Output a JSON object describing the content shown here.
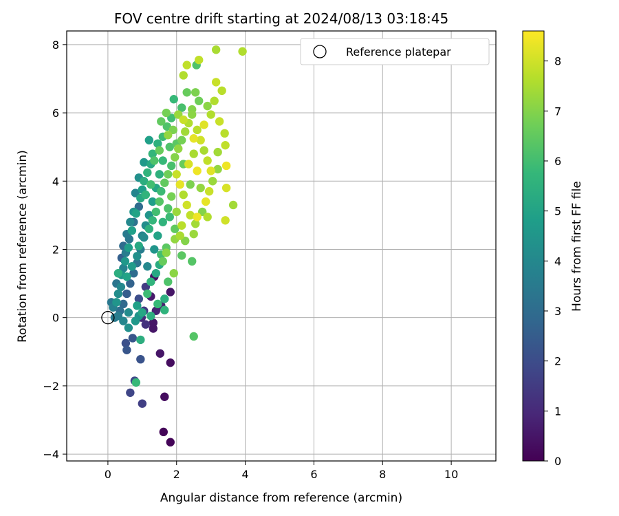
{
  "chart_data": {
    "type": "scatter",
    "title": "FOV centre drift starting at 2024/08/13 03:18:45",
    "xlabel": "Angular distance from reference (arcmin)",
    "ylabel": "Rotation from reference (arcmin)",
    "xlim": [
      -1.2,
      11.3
    ],
    "ylim": [
      -4.2,
      8.4
    ],
    "x_ticks": [
      0,
      2,
      4,
      6,
      8,
      10
    ],
    "y_ticks": [
      -4,
      -2,
      0,
      2,
      4,
      6,
      8
    ],
    "x_tick_labels": [
      "0",
      "2",
      "4",
      "6",
      "8",
      "10"
    ],
    "y_tick_labels": [
      "−4",
      "−2",
      "0",
      "2",
      "4",
      "6",
      "8"
    ],
    "grid": true,
    "legend": {
      "placement": "top-right",
      "label": "Reference platepar"
    },
    "reference_point": {
      "x": 0,
      "y": 0
    },
    "colorbar": {
      "label": "Hours from first FF file",
      "range": [
        0,
        8.6
      ],
      "ticks": [
        0,
        1,
        2,
        3,
        4,
        5,
        6,
        7,
        8
      ],
      "tick_labels": [
        "0",
        "1",
        "2",
        "3",
        "4",
        "5",
        "6",
        "7",
        "8"
      ],
      "colormap": "viridis"
    },
    "points": [
      {
        "x": 1.82,
        "y": -3.65,
        "h": 0.1
      },
      {
        "x": 1.62,
        "y": -3.35,
        "h": 0.1
      },
      {
        "x": 1.65,
        "y": -2.32,
        "h": 0.3
      },
      {
        "x": 1.82,
        "y": -1.32,
        "h": 0.3
      },
      {
        "x": 1.52,
        "y": -1.05,
        "h": 0.5
      },
      {
        "x": 1.32,
        "y": -0.32,
        "h": 0.5
      },
      {
        "x": 1.32,
        "y": -0.15,
        "h": 0.5
      },
      {
        "x": 1.25,
        "y": 0.62,
        "h": 0.6
      },
      {
        "x": 1.82,
        "y": 0.75,
        "h": 0.5
      },
      {
        "x": 1.35,
        "y": 1.2,
        "h": 0.4
      },
      {
        "x": 1.0,
        "y": -2.52,
        "h": 1.6
      },
      {
        "x": 0.65,
        "y": -2.2,
        "h": 1.8
      },
      {
        "x": 0.78,
        "y": -1.85,
        "h": 1.9
      },
      {
        "x": 0.95,
        "y": -1.22,
        "h": 2.2
      },
      {
        "x": 0.55,
        "y": -0.95,
        "h": 2.3
      },
      {
        "x": 0.52,
        "y": -0.75,
        "h": 2.1
      },
      {
        "x": 0.72,
        "y": -0.6,
        "h": 2.3
      },
      {
        "x": 1.1,
        "y": 0.9,
        "h": 1.5
      },
      {
        "x": 1.05,
        "y": 0.2,
        "h": 1.5
      },
      {
        "x": 0.9,
        "y": 0.55,
        "h": 2.0
      },
      {
        "x": 0.82,
        "y": -1.9,
        "h": 5.8
      },
      {
        "x": 0.95,
        "y": -0.65,
        "h": 5.4
      },
      {
        "x": 2.5,
        "y": -0.55,
        "h": 6.3
      },
      {
        "x": 1.65,
        "y": 0.22,
        "h": 5.6
      },
      {
        "x": 1.65,
        "y": 0.55,
        "h": 5.4
      },
      {
        "x": 1.75,
        "y": 1.05,
        "h": 6.2
      },
      {
        "x": 1.92,
        "y": 1.3,
        "h": 7.1
      },
      {
        "x": 2.15,
        "y": 1.82,
        "h": 6.4
      },
      {
        "x": 2.45,
        "y": 1.65,
        "h": 6.3
      },
      {
        "x": 0.25,
        "y": 0.45,
        "h": 4.5
      },
      {
        "x": 0.3,
        "y": 0.7,
        "h": 4.2
      },
      {
        "x": 0.38,
        "y": 0.9,
        "h": 4.0
      },
      {
        "x": 0.4,
        "y": 1.25,
        "h": 4.4
      },
      {
        "x": 0.45,
        "y": 1.45,
        "h": 3.8
      },
      {
        "x": 0.5,
        "y": 1.65,
        "h": 4.6
      },
      {
        "x": 0.52,
        "y": 1.9,
        "h": 3.6
      },
      {
        "x": 0.6,
        "y": 2.05,
        "h": 4.8
      },
      {
        "x": 0.62,
        "y": 2.3,
        "h": 3.4
      },
      {
        "x": 0.7,
        "y": 2.55,
        "h": 4.9
      },
      {
        "x": 0.75,
        "y": 2.8,
        "h": 3.2
      },
      {
        "x": 0.82,
        "y": 3.05,
        "h": 5.0
      },
      {
        "x": 0.9,
        "y": 3.25,
        "h": 3.0
      },
      {
        "x": 0.95,
        "y": 3.5,
        "h": 5.2
      },
      {
        "x": 1.0,
        "y": 3.75,
        "h": 4.8
      },
      {
        "x": 1.05,
        "y": 4.0,
        "h": 5.4
      },
      {
        "x": 1.15,
        "y": 4.25,
        "h": 5.6
      },
      {
        "x": 1.25,
        "y": 4.5,
        "h": 5.2
      },
      {
        "x": 1.3,
        "y": 4.8,
        "h": 5.7
      },
      {
        "x": 1.45,
        "y": 5.1,
        "h": 5.5
      },
      {
        "x": 1.6,
        "y": 5.3,
        "h": 5.9
      },
      {
        "x": 1.72,
        "y": 5.6,
        "h": 6.2
      },
      {
        "x": 1.85,
        "y": 5.85,
        "h": 6.0
      },
      {
        "x": 1.92,
        "y": 6.4,
        "h": 5.8
      },
      {
        "x": 2.15,
        "y": 6.15,
        "h": 6.1
      },
      {
        "x": 2.3,
        "y": 6.6,
        "h": 6.6
      },
      {
        "x": 2.55,
        "y": 6.6,
        "h": 6.9
      },
      {
        "x": 2.45,
        "y": 6.1,
        "h": 7.0
      },
      {
        "x": 2.2,
        "y": 7.1,
        "h": 7.6
      },
      {
        "x": 2.3,
        "y": 7.4,
        "h": 7.8
      },
      {
        "x": 2.58,
        "y": 7.4,
        "h": 6.2
      },
      {
        "x": 2.65,
        "y": 7.55,
        "h": 7.8
      },
      {
        "x": 3.15,
        "y": 7.85,
        "h": 7.5
      },
      {
        "x": 3.92,
        "y": 7.8,
        "h": 7.6
      },
      {
        "x": 3.15,
        "y": 6.9,
        "h": 7.9
      },
      {
        "x": 3.32,
        "y": 6.65,
        "h": 7.7
      },
      {
        "x": 3.1,
        "y": 6.35,
        "h": 7.6
      },
      {
        "x": 3.25,
        "y": 5.75,
        "h": 7.9
      },
      {
        "x": 3.4,
        "y": 5.4,
        "h": 7.7
      },
      {
        "x": 3.42,
        "y": 5.05,
        "h": 7.8
      },
      {
        "x": 3.2,
        "y": 4.85,
        "h": 7.4
      },
      {
        "x": 3.45,
        "y": 4.45,
        "h": 8.4
      },
      {
        "x": 3.2,
        "y": 4.35,
        "h": 7.2
      },
      {
        "x": 3.45,
        "y": 3.8,
        "h": 8.1
      },
      {
        "x": 3.65,
        "y": 3.3,
        "h": 7.4
      },
      {
        "x": 3.42,
        "y": 2.85,
        "h": 8.0
      },
      {
        "x": 2.9,
        "y": 2.95,
        "h": 7.6
      },
      {
        "x": 2.5,
        "y": 2.45,
        "h": 7.3
      },
      {
        "x": 2.6,
        "y": 2.95,
        "h": 8.4
      },
      {
        "x": 2.1,
        "y": 2.4,
        "h": 7.5
      },
      {
        "x": 1.95,
        "y": 2.3,
        "h": 7.2
      },
      {
        "x": 1.7,
        "y": 2.05,
        "h": 6.4
      },
      {
        "x": 1.55,
        "y": 1.85,
        "h": 6.0
      },
      {
        "x": 1.5,
        "y": 1.55,
        "h": 5.3
      },
      {
        "x": 1.4,
        "y": 1.3,
        "h": 5.2
      },
      {
        "x": 1.6,
        "y": 1.65,
        "h": 6.6
      },
      {
        "x": 1.7,
        "y": 1.9,
        "h": 7.1
      },
      {
        "x": 1.25,
        "y": 1.05,
        "h": 5.6
      },
      {
        "x": 1.15,
        "y": 0.7,
        "h": 5.9
      },
      {
        "x": 1.45,
        "y": 0.4,
        "h": 5.8
      },
      {
        "x": 1.25,
        "y": 0.05,
        "h": 5.4
      },
      {
        "x": 1.0,
        "y": 0.15,
        "h": 5.1
      },
      {
        "x": 0.85,
        "y": 0.35,
        "h": 4.9
      },
      {
        "x": 0.8,
        "y": -0.1,
        "h": 4.6
      },
      {
        "x": 0.6,
        "y": -0.3,
        "h": 4.3
      },
      {
        "x": 0.45,
        "y": -0.1,
        "h": 3.9
      },
      {
        "x": 0.3,
        "y": 0.05,
        "h": 3.6
      },
      {
        "x": 0.15,
        "y": 0.3,
        "h": 3.7
      },
      {
        "x": 0.1,
        "y": 0.45,
        "h": 3.4
      },
      {
        "x": 0.25,
        "y": 1.0,
        "h": 3.3
      },
      {
        "x": 0.3,
        "y": 1.3,
        "h": 5.4
      },
      {
        "x": 0.55,
        "y": 1.2,
        "h": 5.0
      },
      {
        "x": 0.7,
        "y": 1.5,
        "h": 4.7
      },
      {
        "x": 0.85,
        "y": 1.8,
        "h": 4.3
      },
      {
        "x": 0.9,
        "y": 2.1,
        "h": 5.2
      },
      {
        "x": 1.05,
        "y": 2.35,
        "h": 4.1
      },
      {
        "x": 1.2,
        "y": 2.6,
        "h": 5.5
      },
      {
        "x": 1.3,
        "y": 2.85,
        "h": 5.7
      },
      {
        "x": 1.4,
        "y": 3.1,
        "h": 6.0
      },
      {
        "x": 1.5,
        "y": 3.4,
        "h": 6.3
      },
      {
        "x": 1.55,
        "y": 3.7,
        "h": 5.9
      },
      {
        "x": 1.65,
        "y": 3.95,
        "h": 6.5
      },
      {
        "x": 1.75,
        "y": 4.2,
        "h": 6.7
      },
      {
        "x": 1.85,
        "y": 4.45,
        "h": 6.1
      },
      {
        "x": 1.95,
        "y": 4.7,
        "h": 7.0
      },
      {
        "x": 2.05,
        "y": 4.95,
        "h": 7.2
      },
      {
        "x": 2.15,
        "y": 5.2,
        "h": 6.8
      },
      {
        "x": 2.25,
        "y": 5.45,
        "h": 7.4
      },
      {
        "x": 2.35,
        "y": 5.7,
        "h": 7.6
      },
      {
        "x": 2.45,
        "y": 5.95,
        "h": 7.1
      },
      {
        "x": 2.6,
        "y": 5.5,
        "h": 7.7
      },
      {
        "x": 2.7,
        "y": 5.2,
        "h": 8.0
      },
      {
        "x": 2.8,
        "y": 4.9,
        "h": 7.5
      },
      {
        "x": 2.9,
        "y": 4.6,
        "h": 7.8
      },
      {
        "x": 3.0,
        "y": 4.3,
        "h": 8.2
      },
      {
        "x": 3.05,
        "y": 4.0,
        "h": 7.3
      },
      {
        "x": 2.95,
        "y": 3.7,
        "h": 7.9
      },
      {
        "x": 2.85,
        "y": 3.4,
        "h": 8.3
      },
      {
        "x": 2.75,
        "y": 3.1,
        "h": 7.0
      },
      {
        "x": 2.55,
        "y": 2.75,
        "h": 7.4
      },
      {
        "x": 2.4,
        "y": 3.0,
        "h": 7.8
      },
      {
        "x": 2.3,
        "y": 3.3,
        "h": 8.0
      },
      {
        "x": 2.2,
        "y": 3.6,
        "h": 7.6
      },
      {
        "x": 2.1,
        "y": 3.9,
        "h": 8.3
      },
      {
        "x": 2.0,
        "y": 4.2,
        "h": 7.9
      },
      {
        "x": 2.35,
        "y": 4.5,
        "h": 8.1
      },
      {
        "x": 2.5,
        "y": 4.8,
        "h": 7.5
      },
      {
        "x": 2.6,
        "y": 4.3,
        "h": 8.4
      },
      {
        "x": 2.7,
        "y": 3.8,
        "h": 7.2
      },
      {
        "x": 2.4,
        "y": 3.9,
        "h": 6.9
      },
      {
        "x": 2.2,
        "y": 4.5,
        "h": 6.6
      },
      {
        "x": 2.0,
        "y": 5.1,
        "h": 6.4
      },
      {
        "x": 1.9,
        "y": 5.5,
        "h": 6.9
      },
      {
        "x": 1.8,
        "y": 5.0,
        "h": 6.2
      },
      {
        "x": 1.6,
        "y": 4.6,
        "h": 5.8
      },
      {
        "x": 1.5,
        "y": 4.2,
        "h": 5.5
      },
      {
        "x": 1.4,
        "y": 3.8,
        "h": 5.1
      },
      {
        "x": 1.3,
        "y": 3.4,
        "h": 4.8
      },
      {
        "x": 1.2,
        "y": 3.0,
        "h": 4.5
      },
      {
        "x": 1.1,
        "y": 2.7,
        "h": 4.2
      },
      {
        "x": 1.0,
        "y": 2.4,
        "h": 3.9
      },
      {
        "x": 0.95,
        "y": 2.0,
        "h": 3.6
      },
      {
        "x": 0.85,
        "y": 1.6,
        "h": 3.3
      },
      {
        "x": 0.75,
        "y": 1.3,
        "h": 3.0
      },
      {
        "x": 0.65,
        "y": 1.0,
        "h": 2.7
      },
      {
        "x": 0.55,
        "y": 0.7,
        "h": 2.5
      },
      {
        "x": 0.45,
        "y": 0.4,
        "h": 2.9
      },
      {
        "x": 0.35,
        "y": 0.2,
        "h": 3.1
      },
      {
        "x": 0.2,
        "y": 0.0,
        "h": 3.5
      },
      {
        "x": 0.6,
        "y": 0.15,
        "h": 4.1
      },
      {
        "x": 0.9,
        "y": 0.05,
        "h": 4.4
      },
      {
        "x": 1.1,
        "y": -0.2,
        "h": 1.2
      },
      {
        "x": 0.98,
        "y": 0.0,
        "h": 1.0
      },
      {
        "x": 1.4,
        "y": 0.2,
        "h": 0.8
      },
      {
        "x": 1.55,
        "y": 0.35,
        "h": 0.7
      },
      {
        "x": 1.15,
        "y": 1.5,
        "h": 4.0
      },
      {
        "x": 1.35,
        "y": 2.0,
        "h": 4.5
      },
      {
        "x": 1.45,
        "y": 2.4,
        "h": 5.0
      },
      {
        "x": 1.6,
        "y": 2.8,
        "h": 5.6
      },
      {
        "x": 1.75,
        "y": 3.2,
        "h": 6.2
      },
      {
        "x": 1.85,
        "y": 3.55,
        "h": 6.8
      },
      {
        "x": 2.0,
        "y": 3.1,
        "h": 7.3
      },
      {
        "x": 2.15,
        "y": 2.7,
        "h": 7.7
      },
      {
        "x": 2.25,
        "y": 2.25,
        "h": 7.0
      },
      {
        "x": 1.95,
        "y": 2.6,
        "h": 6.5
      },
      {
        "x": 1.8,
        "y": 2.95,
        "h": 5.9
      },
      {
        "x": 1.55,
        "y": 5.75,
        "h": 6.5
      },
      {
        "x": 1.7,
        "y": 6.0,
        "h": 6.8
      },
      {
        "x": 2.05,
        "y": 5.95,
        "h": 7.3
      },
      {
        "x": 2.2,
        "y": 5.8,
        "h": 7.9
      },
      {
        "x": 2.5,
        "y": 5.25,
        "h": 8.3
      },
      {
        "x": 2.8,
        "y": 5.65,
        "h": 8.2
      },
      {
        "x": 3.0,
        "y": 5.95,
        "h": 7.6
      },
      {
        "x": 2.9,
        "y": 6.2,
        "h": 7.1
      },
      {
        "x": 2.65,
        "y": 6.35,
        "h": 6.7
      },
      {
        "x": 1.25,
        "y": 3.9,
        "h": 6.0
      },
      {
        "x": 1.1,
        "y": 3.6,
        "h": 5.6
      },
      {
        "x": 0.75,
        "y": 3.1,
        "h": 4.5
      },
      {
        "x": 0.65,
        "y": 2.8,
        "h": 4.0
      },
      {
        "x": 0.55,
        "y": 2.45,
        "h": 3.5
      },
      {
        "x": 0.45,
        "y": 2.1,
        "h": 3.0
      },
      {
        "x": 0.4,
        "y": 1.75,
        "h": 2.6
      },
      {
        "x": 1.35,
        "y": 4.6,
        "h": 6.2
      },
      {
        "x": 1.5,
        "y": 4.9,
        "h": 6.6
      },
      {
        "x": 1.75,
        "y": 5.35,
        "h": 7.2
      },
      {
        "x": 1.2,
        "y": 5.2,
        "h": 4.9
      },
      {
        "x": 1.05,
        "y": 4.55,
        "h": 4.6
      },
      {
        "x": 0.9,
        "y": 4.1,
        "h": 4.3
      },
      {
        "x": 0.8,
        "y": 3.65,
        "h": 3.9
      }
    ]
  }
}
